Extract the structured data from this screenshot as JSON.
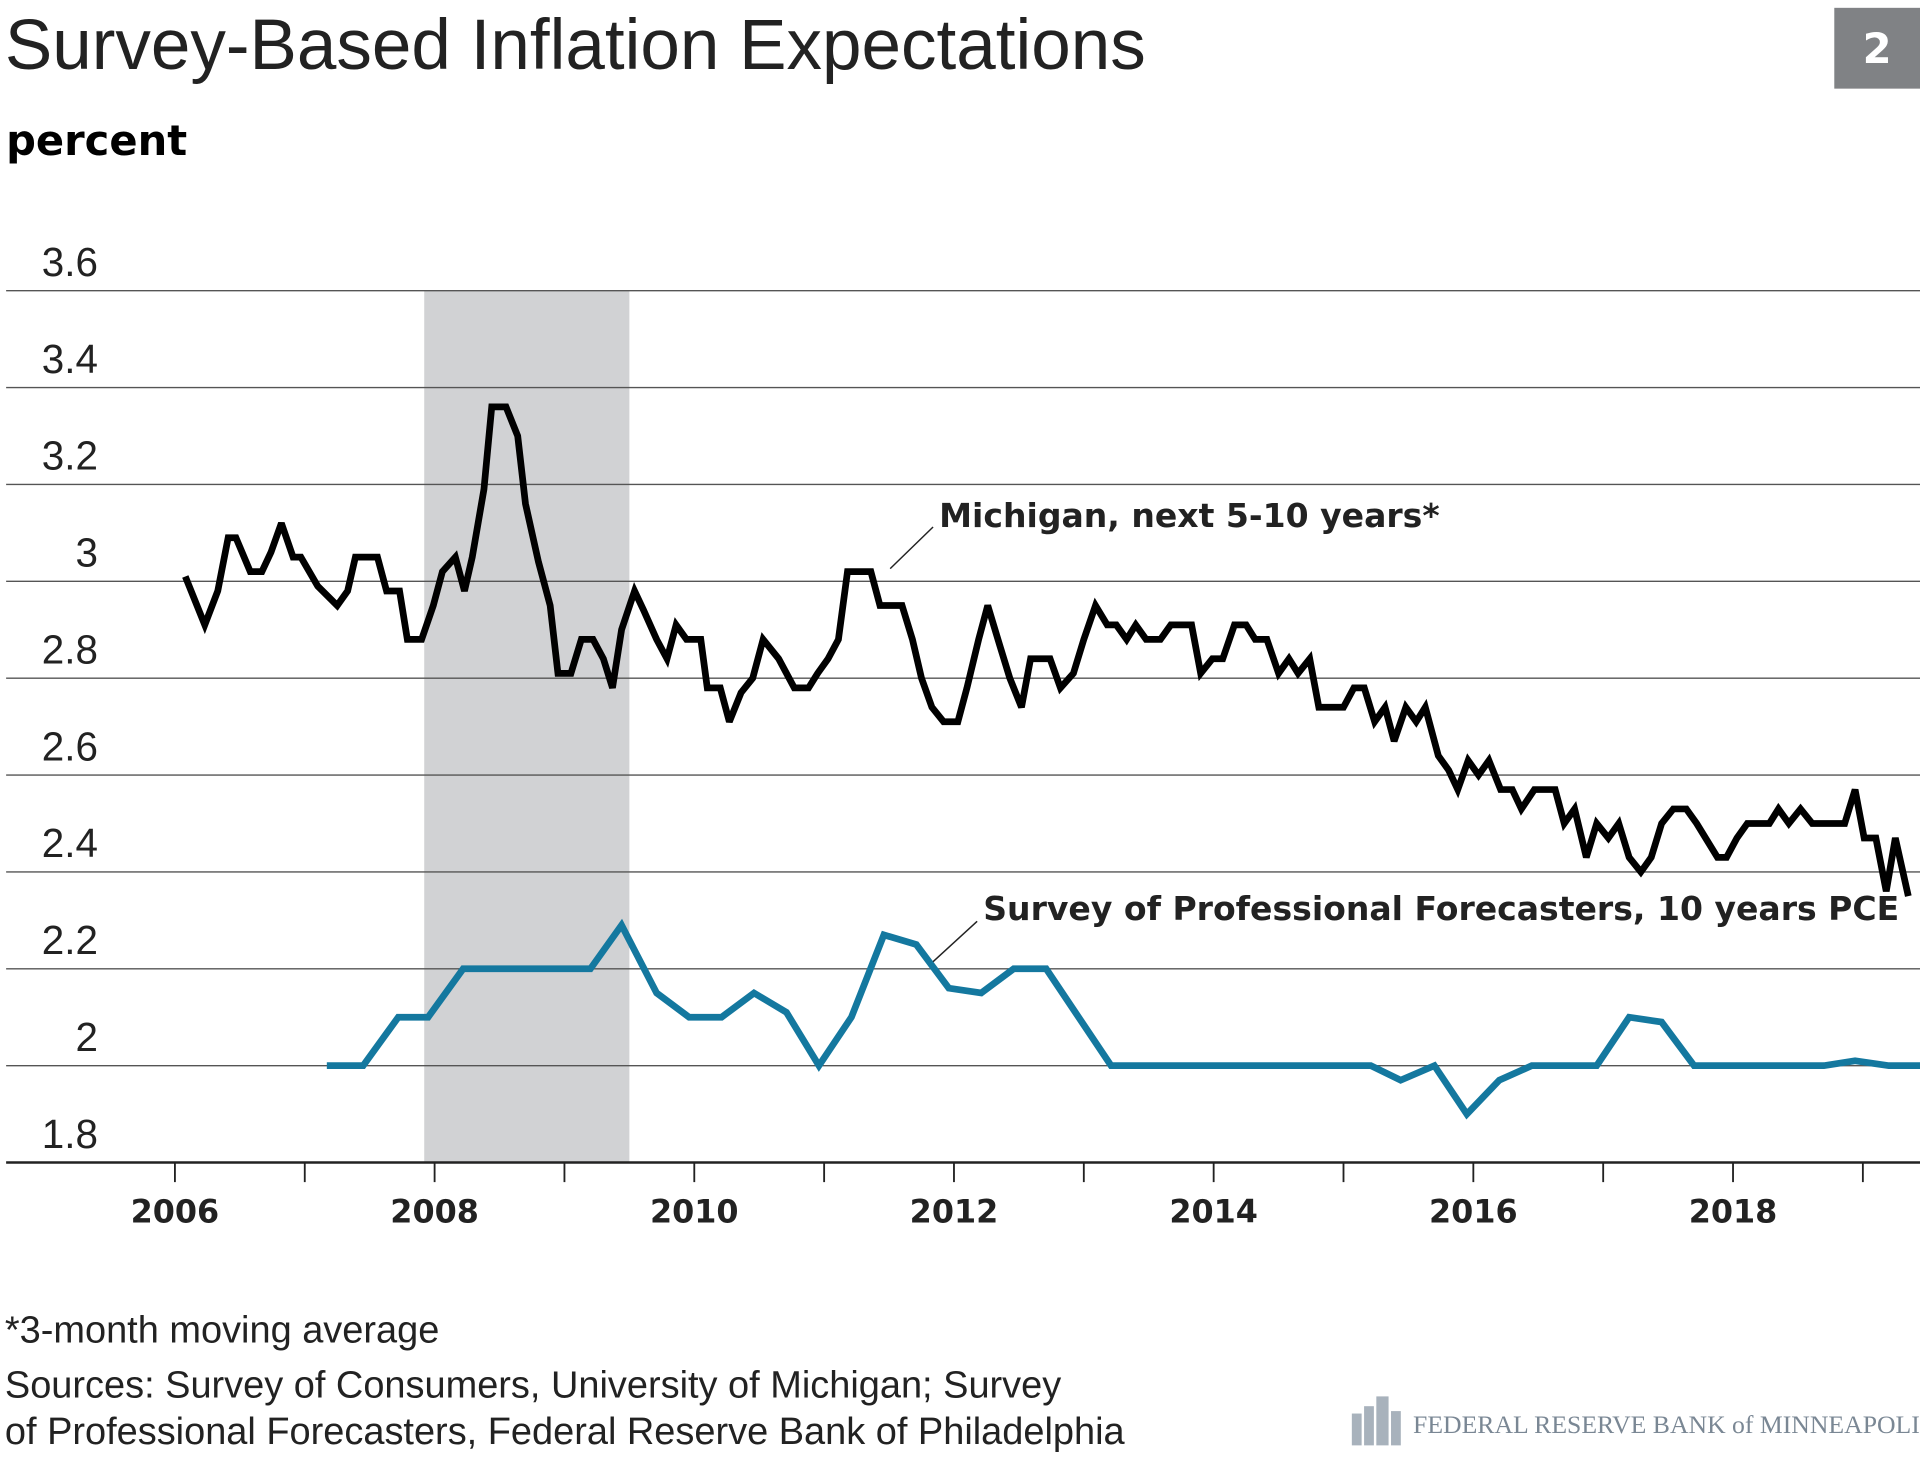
{
  "chart_data": {
    "type": "line",
    "title": "Survey-Based Inflation Expectations",
    "badge": "2",
    "y_label": "percent",
    "xlim": [
      2004.7,
      2019.44
    ],
    "xticks": [
      2006,
      2008,
      2010,
      2012,
      2014,
      2016,
      2018
    ],
    "xminor": [
      2007,
      2009,
      2011,
      2013,
      2015,
      2017,
      2019
    ],
    "ylim": [
      1.8,
      3.6
    ],
    "yticks": [
      1.8,
      2.0,
      2.2,
      2.4,
      2.6,
      2.8,
      3.0,
      3.2,
      3.4,
      3.6
    ],
    "grid": true,
    "recession": [
      2007.92,
      2009.5
    ],
    "recession_color": "#d1d2d4",
    "series": [
      {
        "name": "Michigan, next 5-10 years*",
        "color": "#000000",
        "x": [
          2006.08,
          2006.23,
          2006.33,
          2006.41,
          2006.47,
          2006.58,
          2006.67,
          2006.74,
          2006.82,
          2006.91,
          2006.97,
          2007.1,
          2007.25,
          2007.33,
          2007.39,
          2007.56,
          2007.63,
          2007.73,
          2007.79,
          2007.9,
          2007.99,
          2008.06,
          2008.16,
          2008.23,
          2008.29,
          2008.38,
          2008.44,
          2008.55,
          2008.64,
          2008.7,
          2008.8,
          2008.89,
          2008.95,
          2009.05,
          2009.13,
          2009.22,
          2009.3,
          2009.37,
          2009.44,
          2009.54,
          2009.61,
          2009.71,
          2009.79,
          2009.86,
          2009.94,
          2010.05,
          2010.1,
          2010.2,
          2010.27,
          2010.36,
          2010.45,
          2010.53,
          2010.65,
          2010.77,
          2010.88,
          2010.95,
          2011.03,
          2011.11,
          2011.18,
          2011.36,
          2011.43,
          2011.6,
          2011.68,
          2011.75,
          2011.83,
          2011.92,
          2012.03,
          2012.1,
          2012.19,
          2012.26,
          2012.35,
          2012.43,
          2012.52,
          2012.59,
          2012.74,
          2012.82,
          2012.92,
          2013.0,
          2013.09,
          2013.18,
          2013.25,
          2013.33,
          2013.4,
          2013.48,
          2013.59,
          2013.67,
          2013.83,
          2013.9,
          2013.99,
          2014.07,
          2014.16,
          2014.25,
          2014.32,
          2014.41,
          2014.5,
          2014.58,
          2014.65,
          2014.74,
          2014.81,
          2015.0,
          2015.08,
          2015.16,
          2015.24,
          2015.32,
          2015.39,
          2015.48,
          2015.56,
          2015.63,
          2015.73,
          2015.81,
          2015.88,
          2015.96,
          2016.04,
          2016.12,
          2016.21,
          2016.3,
          2016.37,
          2016.47,
          2016.63,
          2016.7,
          2016.78,
          2016.87,
          2016.95,
          2017.04,
          2017.12,
          2017.2,
          2017.29,
          2017.37,
          2017.45,
          2017.54,
          2017.64,
          2017.72,
          2017.88,
          2017.95,
          2018.03,
          2018.11,
          2018.28,
          2018.35,
          2018.43,
          2018.52,
          2018.61,
          2018.86,
          2018.94,
          2019.01,
          2019.1,
          2019.18,
          2019.25,
          2019.35
        ],
        "values": [
          3.01,
          2.91,
          2.98,
          3.09,
          3.09,
          3.02,
          3.02,
          3.06,
          3.12,
          3.05,
          3.05,
          2.99,
          2.95,
          2.98,
          3.05,
          3.05,
          2.98,
          2.98,
          2.88,
          2.88,
          2.95,
          3.02,
          3.05,
          2.98,
          3.05,
          3.19,
          3.36,
          3.36,
          3.3,
          3.16,
          3.04,
          2.95,
          2.81,
          2.81,
          2.88,
          2.88,
          2.84,
          2.78,
          2.9,
          2.98,
          2.94,
          2.88,
          2.84,
          2.91,
          2.88,
          2.88,
          2.78,
          2.78,
          2.71,
          2.77,
          2.8,
          2.88,
          2.84,
          2.78,
          2.78,
          2.81,
          2.84,
          2.88,
          3.02,
          3.02,
          2.95,
          2.95,
          2.88,
          2.8,
          2.74,
          2.71,
          2.71,
          2.78,
          2.88,
          2.95,
          2.87,
          2.8,
          2.74,
          2.84,
          2.84,
          2.78,
          2.81,
          2.88,
          2.95,
          2.91,
          2.91,
          2.88,
          2.91,
          2.88,
          2.88,
          2.91,
          2.91,
          2.81,
          2.84,
          2.84,
          2.91,
          2.91,
          2.88,
          2.88,
          2.81,
          2.84,
          2.81,
          2.84,
          2.74,
          2.74,
          2.78,
          2.78,
          2.71,
          2.74,
          2.67,
          2.74,
          2.71,
          2.74,
          2.64,
          2.61,
          2.57,
          2.63,
          2.6,
          2.63,
          2.57,
          2.57,
          2.53,
          2.57,
          2.57,
          2.5,
          2.53,
          2.43,
          2.5,
          2.47,
          2.5,
          2.43,
          2.4,
          2.43,
          2.5,
          2.53,
          2.53,
          2.5,
          2.43,
          2.43,
          2.47,
          2.5,
          2.5,
          2.53,
          2.5,
          2.53,
          2.5,
          2.5,
          2.57,
          2.47,
          2.47,
          2.36,
          2.47,
          2.35
        ]
      },
      {
        "name": "Survey of Professional Forecasters, 10 years PCE",
        "color": "#14789f",
        "x": [
          2007.17,
          2007.45,
          2007.72,
          2007.95,
          2008.22,
          2009.2,
          2009.44,
          2009.71,
          2009.96,
          2010.21,
          2010.46,
          2010.71,
          2010.96,
          2011.21,
          2011.46,
          2011.71,
          2011.96,
          2012.21,
          2012.46,
          2012.71,
          2013.21,
          2015.21,
          2015.44,
          2015.7,
          2015.95,
          2016.2,
          2016.45,
          2016.95,
          2017.2,
          2017.45,
          2017.7,
          2018.7,
          2018.94,
          2019.2,
          2019.44
        ],
        "values": [
          2.0,
          2.0,
          2.1,
          2.1,
          2.2,
          2.2,
          2.29,
          2.15,
          2.1,
          2.1,
          2.15,
          2.11,
          2.0,
          2.1,
          2.27,
          2.25,
          2.16,
          2.15,
          2.2,
          2.2,
          2.0,
          2.0,
          1.97,
          2.0,
          1.9,
          1.97,
          2.0,
          2.0,
          2.1,
          2.09,
          2.0,
          2.0,
          2.01,
          2.0,
          2.0
        ]
      }
    ],
    "footnote": "*3-month moving average",
    "sources": [
      "Sources: Survey of Consumers, University of Michigan; Survey",
      "of Professional Forecasters, Federal Reserve Bank of Philadelphia"
    ],
    "logo": "FEDERAL RESERVE BANK of MINNEAPOLIS"
  }
}
